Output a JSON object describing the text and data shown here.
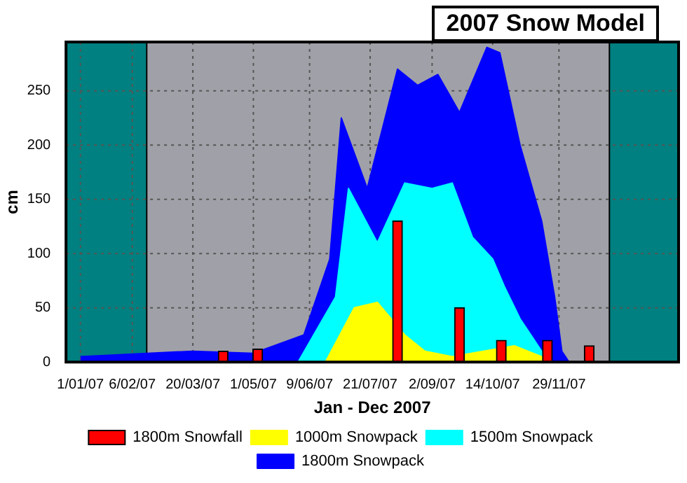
{
  "chart_data": {
    "type": "area",
    "title": "2007 Snow Model",
    "xlabel": "Jan - Dec 2007",
    "ylabel": "cm",
    "xlim": [
      "2006-12-22",
      "2008-02-20"
    ],
    "ylim": [
      0,
      295
    ],
    "xticks": [
      {
        "value": "2007-01-01",
        "label": "1/01/07"
      },
      {
        "value": "2007-02-06",
        "label": "6/02/07"
      },
      {
        "value": "2007-03-20",
        "label": "20/03/07"
      },
      {
        "value": "2007-05-01",
        "label": "1/05/07"
      },
      {
        "value": "2007-06-09",
        "label": "9/06/07"
      },
      {
        "value": "2007-07-21",
        "label": "21/07/07"
      },
      {
        "value": "2007-09-02",
        "label": "2/09/07"
      },
      {
        "value": "2007-10-14",
        "label": "14/10/07"
      },
      {
        "value": "2007-11-29",
        "label": "29/11/07"
      }
    ],
    "yticks": [
      0,
      50,
      100,
      150,
      200,
      250
    ],
    "grid": true,
    "legend": "bottom",
    "bands": [
      {
        "axis": "x",
        "from": "2006-12-22",
        "to": "2007-02-16",
        "color": "#008080"
      },
      {
        "axis": "x",
        "from": "2008-01-03",
        "to": "2008-02-20",
        "color": "#008080"
      }
    ],
    "series": [
      {
        "name": "1800m Snowfall",
        "type": "bar",
        "color": "#ff0000",
        "x": [
          "2007-04-10",
          "2007-05-04",
          "2007-08-09",
          "2007-09-21",
          "2007-10-20",
          "2007-11-21",
          "2007-12-20"
        ],
        "values": [
          10,
          12,
          130,
          50,
          20,
          20,
          15
        ]
      },
      {
        "name": "1000m Snowpack",
        "color": "#ffff00",
        "x": [
          "2007-06-20",
          "2007-07-10",
          "2007-07-26",
          "2007-08-14",
          "2007-08-28",
          "2007-09-16",
          "2007-10-29",
          "2007-11-17",
          "2007-11-25"
        ],
        "values": [
          0,
          50,
          55,
          25,
          10,
          5,
          15,
          5,
          0
        ]
      },
      {
        "name": "1500m Snowpack",
        "color": "#00ffff",
        "x": [
          "2007-06-01",
          "2007-06-27",
          "2007-07-06",
          "2007-07-26",
          "2007-08-14",
          "2007-09-02",
          "2007-09-16",
          "2007-09-30",
          "2007-10-14",
          "2007-10-22",
          "2007-11-02",
          "2007-11-17",
          "2007-11-22"
        ],
        "values": [
          0,
          60,
          160,
          110,
          165,
          160,
          165,
          115,
          95,
          70,
          40,
          10,
          0
        ]
      },
      {
        "name": "1800m Snowpack",
        "color": "#0000ff",
        "x": [
          "2007-01-01",
          "2007-03-20",
          "2007-05-01",
          "2007-06-05",
          "2007-06-23",
          "2007-07-01",
          "2007-07-19",
          "2007-08-09",
          "2007-08-23",
          "2007-09-06",
          "2007-09-21",
          "2007-10-10",
          "2007-10-19",
          "2007-11-02",
          "2007-11-17",
          "2007-11-26",
          "2007-12-01",
          "2007-12-06"
        ],
        "values": [
          5,
          10,
          8,
          25,
          95,
          225,
          160,
          270,
          255,
          265,
          230,
          290,
          285,
          200,
          130,
          60,
          10,
          0
        ]
      }
    ]
  }
}
